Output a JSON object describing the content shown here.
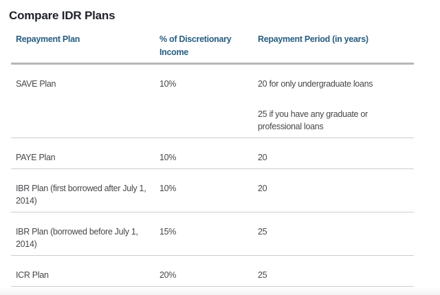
{
  "page": {
    "title": "Compare IDR Plans"
  },
  "table": {
    "headers": {
      "plan": "Repayment Plan",
      "income": "% of Discretionary Income",
      "period": "Repayment Period (in years)"
    },
    "rows": [
      {
        "plan": "SAVE Plan",
        "income": "10%",
        "period": "20 for only undergraduate loans",
        "period2": "25 if you have any graduate or professional loans"
      },
      {
        "plan": "PAYE Plan",
        "income": "10%",
        "period": "20"
      },
      {
        "plan": "IBR Plan (first borrowed after July 1, 2014)",
        "income": "10%",
        "period": "20"
      },
      {
        "plan": "IBR Plan (borrowed before July 1, 2014)",
        "income": "15%",
        "period": "25"
      },
      {
        "plan": "ICR Plan",
        "income": "20%",
        "period": "25"
      }
    ]
  },
  "colors": {
    "title_text": "#1f2229",
    "header_text": "#275d80",
    "body_text": "#46474b",
    "header_rule": "#b5b7b9",
    "row_rule": "#cbcccd",
    "background": "#ffffff"
  }
}
